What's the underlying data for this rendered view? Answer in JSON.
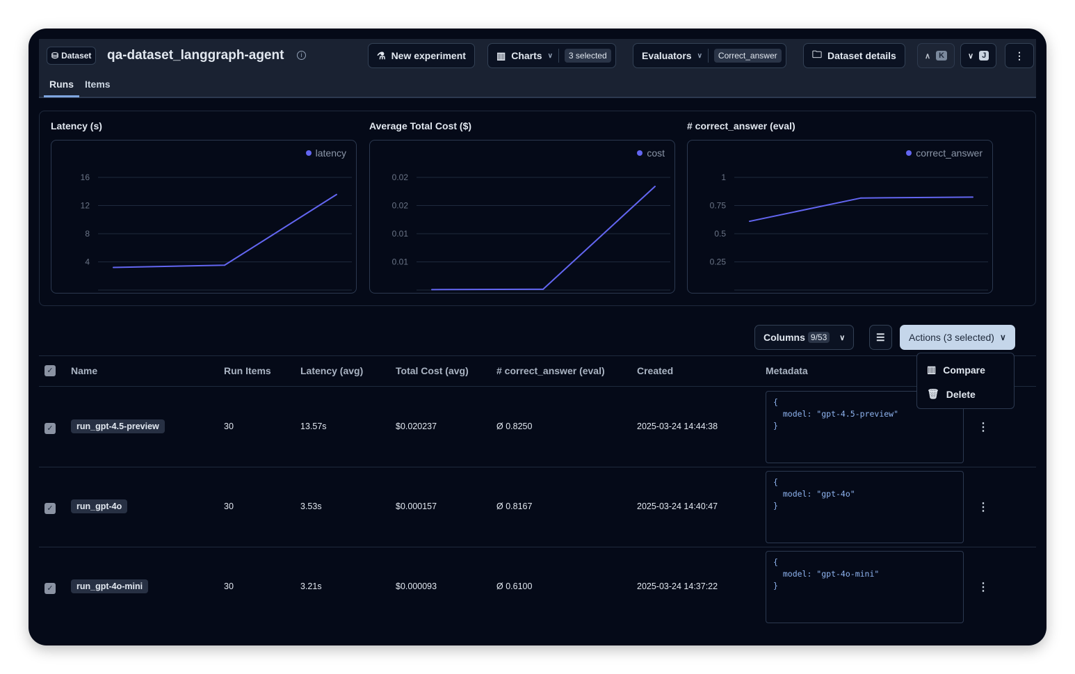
{
  "header": {
    "badge": "Dataset",
    "title": "qa-dataset_langgraph-agent",
    "tabs": [
      "Runs",
      "Items"
    ],
    "new_experiment": "New experiment",
    "charts": "Charts",
    "charts_selected": "3 selected",
    "evaluators": "Evaluators",
    "evaluator_selected": "Correct_answer",
    "dataset_details": "Dataset details",
    "prev_key": "K",
    "next_key": "J"
  },
  "chart_data": [
    {
      "type": "line",
      "title": "Latency (s)",
      "series": [
        {
          "name": "latency",
          "values": [
            3.21,
            3.53,
            13.57
          ]
        }
      ],
      "yticks": [
        "16",
        "12",
        "8",
        "4"
      ],
      "ylim": [
        0,
        16
      ],
      "color": "#6366f1",
      "legend": "top-right",
      "grid": true
    },
    {
      "type": "line",
      "title": "Average Total Cost ($)",
      "series": [
        {
          "name": "cost",
          "values": [
            9.3e-05,
            0.000157,
            0.020237
          ]
        }
      ],
      "yticks": [
        "0.02",
        "0.02",
        "0.01",
        "0.01"
      ],
      "ylim": [
        0,
        0.022
      ],
      "color": "#6366f1",
      "legend": "top-right",
      "grid": true
    },
    {
      "type": "line",
      "title": "# correct_answer (eval)",
      "series": [
        {
          "name": "correct_answer",
          "values": [
            0.61,
            0.8167,
            0.825
          ]
        }
      ],
      "yticks": [
        "1",
        "0.75",
        "0.5",
        "0.25"
      ],
      "ylim": [
        0,
        1
      ],
      "color": "#6366f1",
      "legend": "top-right",
      "grid": true
    }
  ],
  "toolbar": {
    "columns": "Columns",
    "columns_count": "9/53",
    "actions": "Actions (3 selected)"
  },
  "menu": {
    "compare": "Compare",
    "delete": "Delete"
  },
  "table": {
    "headers": [
      "Name",
      "Run Items",
      "Latency (avg)",
      "Total Cost (avg)",
      "# correct_answer (eval)",
      "Created",
      "Metadata"
    ],
    "rows": [
      {
        "name": "run_gpt-4.5-preview",
        "items": "30",
        "latency": "13.57s",
        "cost": "$0.020237",
        "correct": "Ø 0.8250",
        "created": "2025-03-24 14:44:38",
        "meta_open": "{",
        "meta_line": "  model: \"gpt-4.5-preview\"",
        "meta_close": "}"
      },
      {
        "name": "run_gpt-4o",
        "items": "30",
        "latency": "3.53s",
        "cost": "$0.000157",
        "correct": "Ø 0.8167",
        "created": "2025-03-24 14:40:47",
        "meta_open": "{",
        "meta_line": "  model: \"gpt-4o\"",
        "meta_close": "}"
      },
      {
        "name": "run_gpt-4o-mini",
        "items": "30",
        "latency": "3.21s",
        "cost": "$0.000093",
        "correct": "Ø 0.6100",
        "created": "2025-03-24 14:37:22",
        "meta_open": "{",
        "meta_line": "  model: \"gpt-4o-mini\"",
        "meta_close": "}"
      }
    ]
  }
}
